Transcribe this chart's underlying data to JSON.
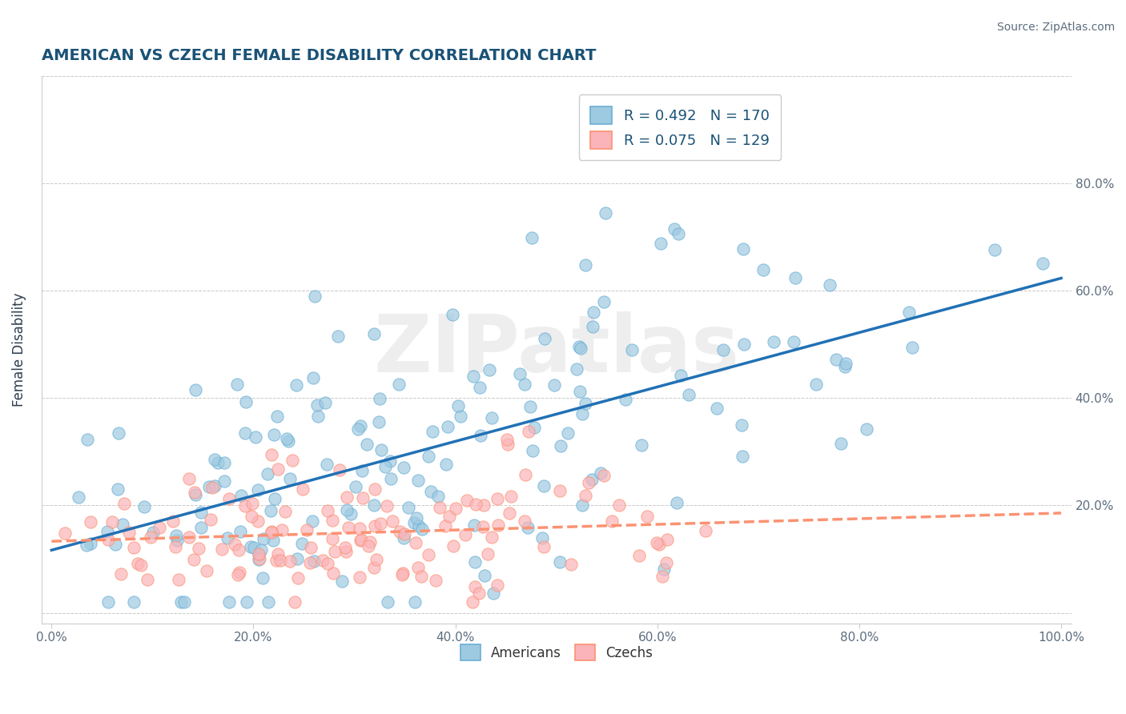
{
  "title": "AMERICAN VS CZECH FEMALE DISABILITY CORRELATION CHART",
  "source": "Source: ZipAtlas.com",
  "ylabel": "Female Disability",
  "xlabel": "",
  "xlim": [
    0,
    1
  ],
  "ylim": [
    0,
    1
  ],
  "americans": {
    "R": 0.492,
    "N": 170,
    "color": "#6baed6",
    "color_fill": "#9ecae1",
    "line_color": "#2171b5"
  },
  "czechs": {
    "R": 0.075,
    "N": 129,
    "color": "#fc9272",
    "color_fill": "#fbb4b9",
    "line_color": "#cb181d"
  },
  "title_color": "#1a5276",
  "axis_label_color": "#2c3e50",
  "tick_color": "#5d6d7e",
  "background_color": "#ffffff",
  "grid_color": "#bbbbbb",
  "watermark_color": "#d0d0d0",
  "legend_R_N_color": "#1a5276",
  "xtick_labels": [
    "0.0%",
    "20.0%",
    "40.0%",
    "60.0%",
    "80.0%",
    "100.0%"
  ],
  "ytick_labels_right": [
    "20.0%",
    "40.0%",
    "60.0%",
    "80.0%"
  ],
  "ytick_positions_right": [
    0.2,
    0.4,
    0.6,
    0.8
  ]
}
